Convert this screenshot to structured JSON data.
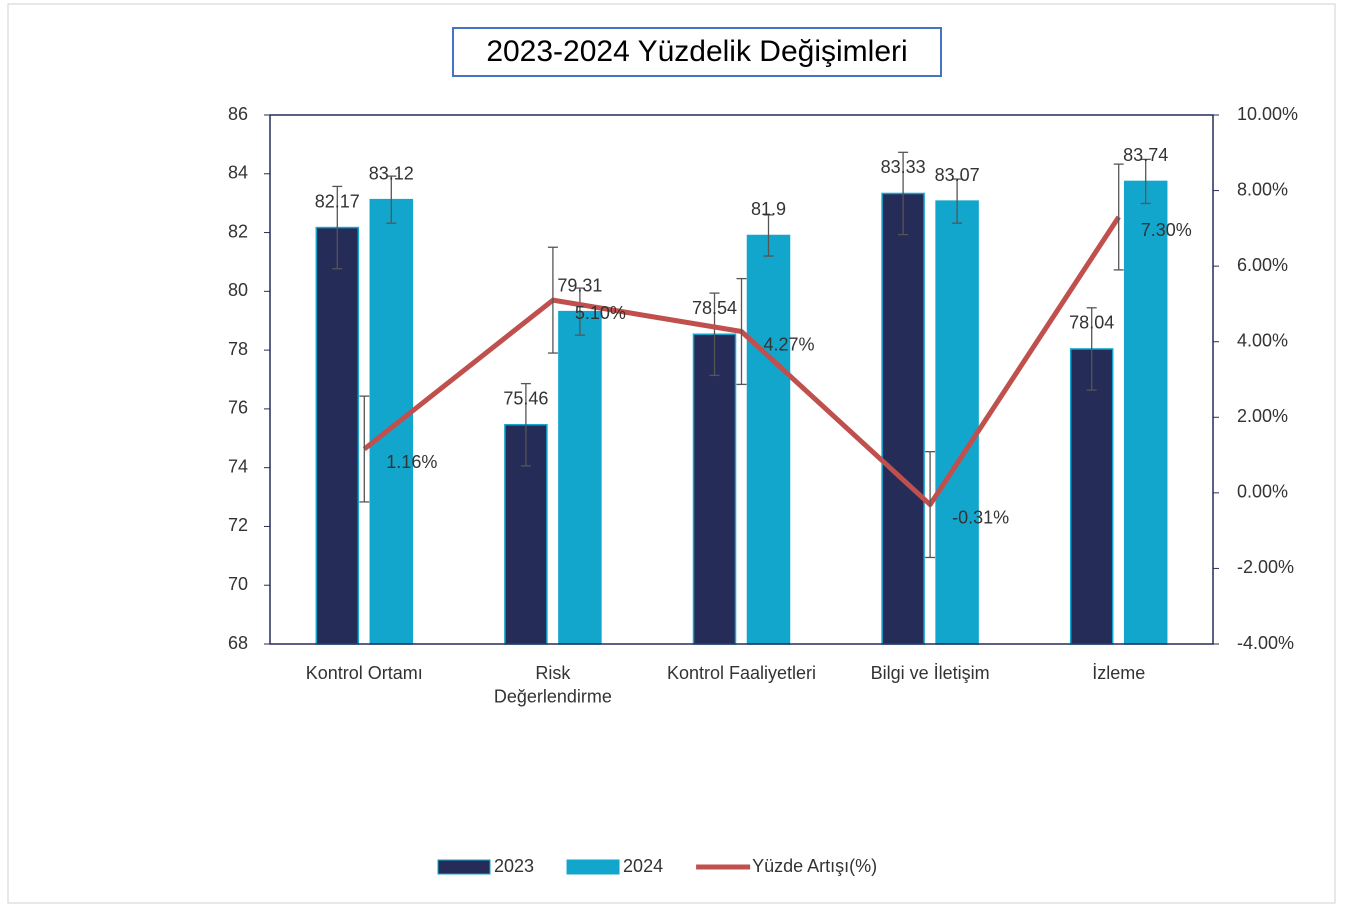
{
  "chart_data": {
    "type": "bar",
    "title": "2023-2024 Yüzdelik Değişimleri",
    "categories": [
      "Kontrol Ortamı",
      "Risk\nDeğerlendirme",
      "Kontrol Faaliyetleri",
      "Bilgi ve İletişim",
      "İzleme"
    ],
    "series": [
      {
        "name": "2023",
        "type": "bar",
        "color": "#262c58",
        "values": [
          82.17,
          75.46,
          78.54,
          83.33,
          78.04
        ],
        "errors": [
          1.4,
          1.4,
          1.4,
          1.4,
          1.4
        ]
      },
      {
        "name": "2024",
        "type": "bar",
        "color": "#13a6cd",
        "values": [
          83.12,
          79.31,
          81.9,
          83.07,
          83.74
        ],
        "errors": [
          0.8,
          0.8,
          0.7,
          0.75,
          0.75
        ]
      },
      {
        "name": "Yüzde Artışı(%)",
        "type": "line",
        "axis": "y2",
        "color": "#c0504d",
        "values": [
          1.16,
          5.1,
          4.27,
          -0.31,
          7.3
        ],
        "value_labels": [
          "1.16%",
          "5.10%",
          "4.27%",
          "-0.31%",
          "7.30%"
        ],
        "errors": [
          1.4,
          1.4,
          1.4,
          1.4,
          1.4
        ]
      }
    ],
    "ylim": [
      68,
      86
    ],
    "yticks": [
      68,
      70,
      72,
      74,
      76,
      78,
      80,
      82,
      84,
      86
    ],
    "y2lim": [
      -4,
      10
    ],
    "y2ticks": [
      {
        "value": -4,
        "label": "-4.00%"
      },
      {
        "value": -2,
        "label": "-2.00%"
      },
      {
        "value": 0,
        "label": "0.00%"
      },
      {
        "value": 2,
        "label": "2.00%"
      },
      {
        "value": 4,
        "label": "4.00%"
      },
      {
        "value": 6,
        "label": "6.00%"
      },
      {
        "value": 8,
        "label": "8.00%"
      },
      {
        "value": 10,
        "label": "10.00%"
      }
    ],
    "legend": "bottom"
  }
}
